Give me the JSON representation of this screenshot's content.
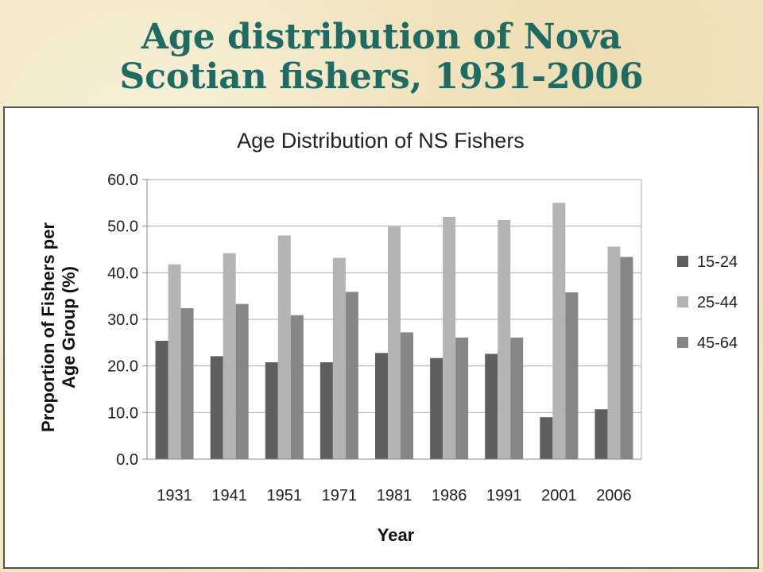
{
  "slide": {
    "title_line1": "Age distribution of Nova",
    "title_line2": "Scotian fishers, 1931-2006"
  },
  "chart_data": {
    "type": "bar",
    "title": "Age Distribution of NS Fishers",
    "xlabel": "Year",
    "ylabel_line1": "Proportion of Fishers per",
    "ylabel_line2": "Age Group (%)",
    "ylim": [
      0,
      60
    ],
    "yticks": [
      "0.0",
      "10.0",
      "20.0",
      "30.0",
      "40.0",
      "50.0",
      "60.0"
    ],
    "categories": [
      "1931",
      "1941",
      "1951",
      "1971",
      "1981",
      "1986",
      "1991",
      "2001",
      "2006"
    ],
    "series": [
      {
        "name": "15-24",
        "color": "#5f5f5f",
        "values": [
          25.4,
          22.1,
          20.8,
          20.8,
          22.8,
          21.7,
          22.6,
          9.0,
          10.7
        ]
      },
      {
        "name": "25-44",
        "color": "#b4b4b4",
        "values": [
          41.8,
          44.2,
          48.0,
          43.2,
          49.9,
          52.0,
          51.3,
          55.0,
          45.6
        ]
      },
      {
        "name": "45-64",
        "color": "#868686",
        "values": [
          32.4,
          33.3,
          30.9,
          35.9,
          27.2,
          26.1,
          26.1,
          35.8,
          43.4
        ]
      }
    ],
    "grid": true,
    "legend_position": "right"
  }
}
